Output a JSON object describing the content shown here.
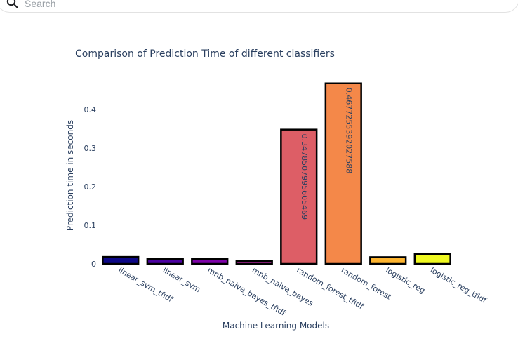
{
  "search": {
    "placeholder": "Search"
  },
  "chart_data": {
    "type": "bar",
    "title": "Comparison of Prediction Time of different classifiers",
    "xlabel": "Machine Learning Models",
    "ylabel": "Prediction time in seconds",
    "ylim": [
      0,
      0.48
    ],
    "yticks": [
      0,
      0.1,
      0.2,
      0.3,
      0.4
    ],
    "ytick_labels": [
      "0",
      "0.1",
      "0.2",
      "0.3",
      "0.4"
    ],
    "grid": false,
    "legend": "none",
    "categories": [
      "linear_svm_tfidf",
      "linear_svm",
      "mnb_naive_bayes_tfidf",
      "mnb_naive_bayes",
      "random_forest_tfidf",
      "random_forest",
      "logistic_reg",
      "logistic_reg_tfidf"
    ],
    "values": [
      0.018,
      0.0132,
      0.0126,
      0.00743,
      0.3478507995605469,
      0.4677255392027588,
      0.0174,
      0.0253
    ],
    "data_labels": [
      "",
      "",
      "",
      "",
      "0.3478507995605469",
      "0.4677255392027588",
      "",
      ""
    ],
    "colors": [
      "#0d0887",
      "#4c02a1",
      "#7e03a8",
      "#a92395",
      "#dd5e66",
      "#f48849",
      "#fdb42f",
      "#f0f921"
    ],
    "outline_color": "#000000"
  }
}
